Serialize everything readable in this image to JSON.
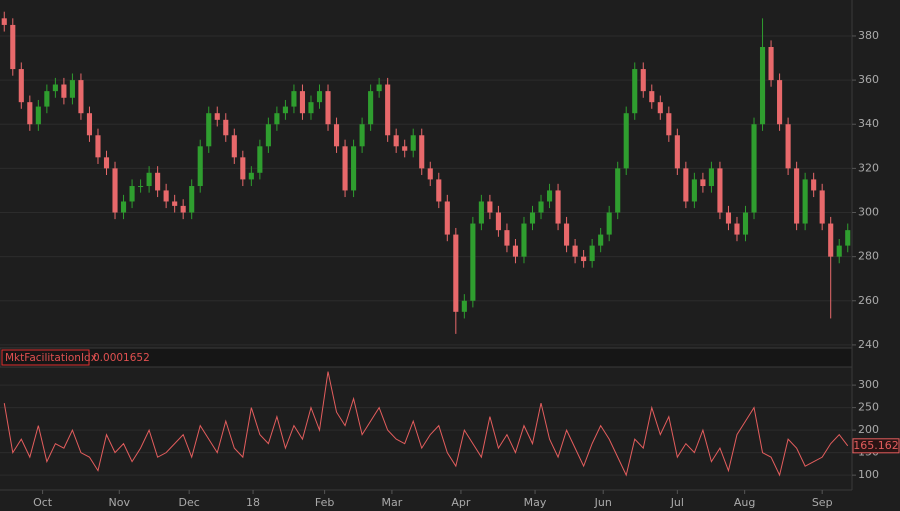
{
  "chart_data": [
    {
      "type": "candlestick",
      "open": [
        388,
        385,
        365,
        350,
        340,
        348,
        355,
        358,
        352,
        360,
        345,
        335,
        325,
        320,
        300,
        305,
        312,
        312,
        318,
        310,
        305,
        303,
        300,
        312,
        330,
        345,
        342,
        335,
        325,
        315,
        318,
        330,
        340,
        345,
        348,
        355,
        345,
        350,
        355,
        340,
        330,
        310,
        330,
        340,
        355,
        358,
        335,
        330,
        328,
        335,
        320,
        315,
        305,
        290,
        255,
        260,
        295,
        305,
        300,
        292,
        285,
        280,
        295,
        300,
        305,
        310,
        295,
        285,
        280,
        278,
        285,
        290,
        300,
        320,
        345,
        365,
        355,
        350,
        345,
        335,
        320,
        305,
        315,
        312,
        320,
        300,
        295,
        290,
        300,
        340,
        375,
        360,
        340,
        320,
        295,
        315,
        310,
        295,
        280,
        285
      ],
      "high": [
        391,
        388,
        368,
        353,
        351,
        358,
        361,
        361,
        363,
        363,
        348,
        338,
        328,
        323,
        308,
        315,
        315,
        321,
        321,
        313,
        308,
        306,
        315,
        333,
        348,
        348,
        345,
        338,
        328,
        321,
        333,
        343,
        348,
        351,
        358,
        358,
        353,
        358,
        358,
        343,
        333,
        333,
        343,
        358,
        361,
        361,
        338,
        333,
        338,
        338,
        323,
        318,
        308,
        293,
        263,
        298,
        308,
        308,
        303,
        295,
        288,
        298,
        303,
        308,
        313,
        313,
        298,
        288,
        283,
        288,
        293,
        303,
        323,
        348,
        368,
        368,
        358,
        353,
        348,
        338,
        323,
        318,
        318,
        323,
        323,
        303,
        298,
        303,
        343,
        388,
        378,
        363,
        343,
        323,
        318,
        318,
        313,
        298,
        288,
        295
      ],
      "low": [
        382,
        362,
        347,
        337,
        337,
        345,
        352,
        349,
        349,
        342,
        332,
        322,
        317,
        297,
        297,
        302,
        309,
        309,
        307,
        302,
        300,
        297,
        297,
        309,
        327,
        339,
        332,
        322,
        312,
        312,
        315,
        327,
        337,
        342,
        345,
        342,
        342,
        347,
        337,
        327,
        307,
        307,
        327,
        337,
        352,
        332,
        327,
        325,
        325,
        317,
        312,
        302,
        287,
        245,
        252,
        257,
        292,
        297,
        289,
        282,
        277,
        277,
        292,
        297,
        302,
        292,
        282,
        277,
        275,
        275,
        282,
        287,
        297,
        317,
        342,
        352,
        347,
        342,
        332,
        317,
        302,
        302,
        309,
        309,
        297,
        292,
        287,
        287,
        297,
        337,
        357,
        337,
        317,
        292,
        292,
        307,
        292,
        252,
        277,
        282
      ],
      "close": [
        385,
        365,
        350,
        340,
        348,
        355,
        358,
        352,
        360,
        345,
        335,
        325,
        320,
        300,
        305,
        312,
        312,
        318,
        310,
        305,
        303,
        300,
        312,
        330,
        345,
        342,
        335,
        325,
        315,
        318,
        330,
        340,
        345,
        348,
        355,
        345,
        350,
        355,
        340,
        330,
        310,
        330,
        340,
        355,
        358,
        335,
        330,
        328,
        335,
        320,
        315,
        305,
        290,
        255,
        260,
        295,
        305,
        300,
        292,
        285,
        280,
        295,
        300,
        305,
        310,
        295,
        285,
        280,
        278,
        285,
        290,
        300,
        320,
        345,
        365,
        355,
        350,
        345,
        335,
        320,
        305,
        315,
        312,
        320,
        300,
        295,
        290,
        300,
        340,
        375,
        360,
        340,
        320,
        295,
        315,
        310,
        295,
        280,
        285,
        292
      ],
      "up_color": "#2f9e2f",
      "down_color": "#e8696b",
      "xlim": [
        0,
        100
      ],
      "xticks": [
        {
          "value": 5,
          "label": "Oct"
        },
        {
          "value": 14,
          "label": "Nov"
        },
        {
          "value": 22.2,
          "label": "Dec"
        },
        {
          "value": 29.7,
          "label": "18"
        },
        {
          "value": 38.1,
          "label": "Feb"
        },
        {
          "value": 46,
          "label": "Mar"
        },
        {
          "value": 54.1,
          "label": "Apr"
        },
        {
          "value": 62.8,
          "label": "May"
        },
        {
          "value": 70.8,
          "label": "Jun"
        },
        {
          "value": 79.5,
          "label": "Jul"
        },
        {
          "value": 87.4,
          "label": "Aug"
        },
        {
          "value": 96.5,
          "label": "Sep"
        }
      ],
      "ylim": [
        238.6,
        396.3
      ],
      "yticks": [
        240,
        260,
        280,
        300,
        320,
        340,
        360,
        380
      ],
      "grid": true
    },
    {
      "type": "line",
      "name": "MktFacilitationIdx",
      "readout": 0.0001652,
      "color": "#e35d5d",
      "values": [
        260,
        150,
        180,
        140,
        210,
        130,
        170,
        160,
        200,
        150,
        140,
        110,
        190,
        150,
        170,
        130,
        160,
        200,
        140,
        150,
        170,
        190,
        140,
        210,
        180,
        150,
        220,
        160,
        140,
        250,
        190,
        170,
        230,
        160,
        210,
        180,
        250,
        200,
        330,
        240,
        210,
        270,
        190,
        220,
        250,
        200,
        180,
        170,
        220,
        160,
        190,
        210,
        150,
        120,
        200,
        170,
        140,
        230,
        160,
        190,
        150,
        210,
        170,
        260,
        180,
        140,
        200,
        160,
        120,
        170,
        210,
        180,
        140,
        100,
        180,
        160,
        250,
        190,
        230,
        140,
        170,
        150,
        200,
        130,
        160,
        110,
        190,
        220,
        250,
        150,
        140,
        100,
        180,
        160,
        120,
        130,
        140,
        170,
        190,
        165.162
      ],
      "xlim": [
        0,
        100
      ],
      "ylim": [
        67,
        338
      ],
      "yticks": [
        100,
        150,
        200,
        250,
        300
      ],
      "grid": true
    }
  ]
}
